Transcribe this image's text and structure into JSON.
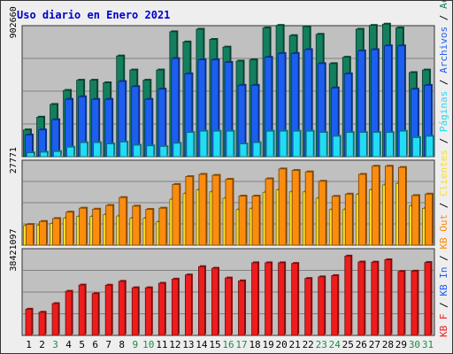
{
  "title": "Uso diario en Enero 2021",
  "colors": {
    "title": "#0000cc",
    "panel": "#c0c0c0",
    "grid": "#808080",
    "accesos": "#137f5e",
    "archivos": "#1c5ef0",
    "paginas": "#22dcf5",
    "clientes": "#fbdf1e",
    "kb_out": "#fb8c0d",
    "kb_in": "#1c5ef0",
    "kb_f": "#ee1c1c",
    "day_normal": "#000000",
    "day_weekend": "#1c8c47"
  },
  "chart_data": {
    "type": "bar",
    "title": "Uso diario en Enero 2021",
    "categories": [
      "1",
      "2",
      "3",
      "4",
      "5",
      "6",
      "7",
      "8",
      "9",
      "10",
      "11",
      "12",
      "13",
      "14",
      "15",
      "16",
      "17",
      "18",
      "19",
      "20",
      "21",
      "22",
      "23",
      "24",
      "25",
      "26",
      "27",
      "28",
      "29",
      "30",
      "31"
    ],
    "weekend_days": [
      "3",
      "9",
      "10",
      "16",
      "17",
      "23",
      "24",
      "30",
      "31"
    ],
    "panels": [
      {
        "name": "accesos",
        "ytick": "902660",
        "ymax": 1000000,
        "series": [
          {
            "name": "Accesos",
            "values": [
              210000,
              310000,
              410000,
              520000,
              600000,
              600000,
              580000,
              790000,
              680000,
              600000,
              680000,
              980000,
              900000,
              1000000,
              920000,
              860000,
              750000,
              760000,
              1010000,
              1030000,
              950000,
              1020000,
              960000,
              730000,
              780000,
              1000000,
              1030000,
              1040000,
              1010000,
              660000,
              680000
            ]
          },
          {
            "name": "Archivos",
            "values": [
              170000,
              210000,
              290000,
              450000,
              470000,
              450000,
              450000,
              590000,
              550000,
              450000,
              530000,
              770000,
              650000,
              760000,
              760000,
              740000,
              560000,
              560000,
              780000,
              810000,
              810000,
              840000,
              730000,
              540000,
              650000,
              830000,
              840000,
              870000,
              870000,
              530000,
              560000
            ]
          },
          {
            "name": "Páginas",
            "values": [
              30000,
              35000,
              40000,
              75000,
              110000,
              110000,
              100000,
              115000,
              90000,
              85000,
              80000,
              105000,
              190000,
              200000,
              200000,
              200000,
              100000,
              110000,
              200000,
              200000,
              200000,
              200000,
              190000,
              160000,
              190000,
              190000,
              190000,
              190000,
              200000,
              150000,
              160000
            ]
          }
        ]
      },
      {
        "name": "clientes",
        "ytick": "27771",
        "ymax": 33000,
        "series": [
          {
            "name": "Clientes",
            "values": [
              7900,
              8100,
              8800,
              11000,
              11600,
              11600,
              12400,
              11800,
              10900,
              10900,
              9500,
              18600,
              20900,
              22400,
              21600,
              19000,
              14400,
              14800,
              21400,
              22400,
              21600,
              21600,
              19000,
              14400,
              14400,
              20600,
              22400,
              24400,
              25000,
              15900,
              14900
            ]
          },
          {
            "name": "KB Out",
            "values": [
              8400,
              9600,
              10800,
              13400,
              15000,
              14600,
              16100,
              19300,
              15800,
              14500,
              15000,
              24600,
              27800,
              28700,
              28300,
              26700,
              19900,
              19900,
              26900,
              30900,
              30300,
              29700,
              25900,
              19800,
              20700,
              28700,
              32000,
              32000,
              31500,
              20100,
              20700
            ]
          }
        ]
      },
      {
        "name": "kb",
        "ytick": "38421097",
        "ymax": 52000000,
        "series": [
          {
            "name": "KB F",
            "values": [
              16400000,
              14500000,
              19900000,
              27600000,
              31500000,
              26100000,
              31400000,
              33800000,
              29800000,
              29800000,
              32600000,
              35200000,
              37800000,
              43000000,
              42000000,
              35900000,
              34100000,
              45400000,
              45400000,
              45400000,
              45000000,
              35600000,
              36600000,
              37400000,
              49600000,
              45900000,
              45800000,
              47300000,
              40000000,
              40200000,
              45600000
            ]
          }
        ]
      }
    ],
    "legend": [
      "KB F",
      "KB In",
      "KB Out",
      "Clientes",
      "Páginas",
      "Archivos",
      "Accesos"
    ],
    "legend_position": "right-vertical"
  }
}
